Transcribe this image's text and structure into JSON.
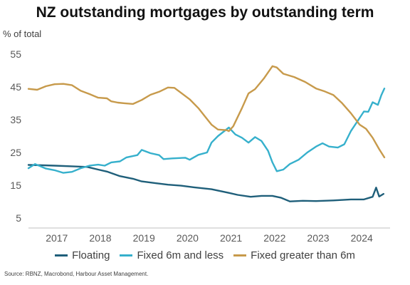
{
  "chart_data": {
    "type": "line",
    "title": "NZ outstanding mortgages by outstanding term",
    "ylabel": "% of total",
    "xlabel": "",
    "ylim": [
      2,
      58
    ],
    "xlim": [
      2016.4,
      2024.7
    ],
    "yticks": [
      5,
      15,
      25,
      35,
      45,
      55
    ],
    "xticks": [
      2017,
      2018,
      2019,
      2020,
      2021,
      2022,
      2023,
      2024
    ],
    "grid": false,
    "legend": "bottom",
    "series": [
      {
        "name": "Floating",
        "color": "#1f5f7a",
        "points": [
          [
            2016.4,
            21.2
          ],
          [
            2016.75,
            21.1
          ],
          [
            2017.0,
            21.0
          ],
          [
            2017.4,
            20.8
          ],
          [
            2017.75,
            20.6
          ],
          [
            2018.0,
            19.8
          ],
          [
            2018.2,
            19.2
          ],
          [
            2018.5,
            17.8
          ],
          [
            2018.8,
            17.0
          ],
          [
            2019.0,
            16.2
          ],
          [
            2019.3,
            15.7
          ],
          [
            2019.6,
            15.2
          ],
          [
            2019.9,
            14.9
          ],
          [
            2020.2,
            14.4
          ],
          [
            2020.6,
            13.8
          ],
          [
            2021.0,
            12.7
          ],
          [
            2021.2,
            12.1
          ],
          [
            2021.5,
            11.5
          ],
          [
            2021.75,
            11.8
          ],
          [
            2022.0,
            11.8
          ],
          [
            2022.2,
            11.2
          ],
          [
            2022.4,
            10.1
          ],
          [
            2022.7,
            10.3
          ],
          [
            2023.0,
            10.2
          ],
          [
            2023.4,
            10.4
          ],
          [
            2023.8,
            10.7
          ],
          [
            2024.1,
            10.7
          ],
          [
            2024.3,
            11.5
          ],
          [
            2024.38,
            14.3
          ],
          [
            2024.45,
            11.6
          ],
          [
            2024.55,
            12.4
          ]
        ]
      },
      {
        "name": "Fixed 6m and less",
        "color": "#36b0cc",
        "points": [
          [
            2016.4,
            20.2
          ],
          [
            2016.55,
            21.5
          ],
          [
            2016.8,
            20.1
          ],
          [
            2017.0,
            19.6
          ],
          [
            2017.2,
            18.8
          ],
          [
            2017.4,
            19.1
          ],
          [
            2017.6,
            20.2
          ],
          [
            2017.8,
            21.0
          ],
          [
            2018.0,
            21.3
          ],
          [
            2018.15,
            21.0
          ],
          [
            2018.3,
            22.0
          ],
          [
            2018.5,
            22.3
          ],
          [
            2018.65,
            23.5
          ],
          [
            2018.9,
            24.2
          ],
          [
            2019.0,
            25.8
          ],
          [
            2019.2,
            24.8
          ],
          [
            2019.4,
            24.2
          ],
          [
            2019.5,
            23.0
          ],
          [
            2019.7,
            23.2
          ],
          [
            2020.0,
            23.4
          ],
          [
            2020.1,
            22.8
          ],
          [
            2020.3,
            24.3
          ],
          [
            2020.5,
            25.0
          ],
          [
            2020.6,
            28.0
          ],
          [
            2020.75,
            30.0
          ],
          [
            2021.0,
            32.6
          ],
          [
            2021.15,
            30.5
          ],
          [
            2021.3,
            29.5
          ],
          [
            2021.45,
            28.0
          ],
          [
            2021.6,
            29.7
          ],
          [
            2021.75,
            28.5
          ],
          [
            2021.9,
            25.5
          ],
          [
            2022.0,
            22.0
          ],
          [
            2022.1,
            19.3
          ],
          [
            2022.25,
            19.8
          ],
          [
            2022.4,
            21.5
          ],
          [
            2022.6,
            22.8
          ],
          [
            2022.8,
            25.0
          ],
          [
            2023.0,
            26.8
          ],
          [
            2023.15,
            27.8
          ],
          [
            2023.3,
            26.8
          ],
          [
            2023.5,
            26.5
          ],
          [
            2023.65,
            27.5
          ],
          [
            2023.8,
            31.5
          ],
          [
            2023.95,
            34.5
          ],
          [
            2024.1,
            37.5
          ],
          [
            2024.2,
            37.4
          ],
          [
            2024.3,
            40.3
          ],
          [
            2024.42,
            39.5
          ],
          [
            2024.5,
            42.5
          ],
          [
            2024.57,
            44.5
          ]
        ]
      },
      {
        "name": "Fixed greater than 6m",
        "color": "#c79a4b",
        "points": [
          [
            2016.4,
            44.4
          ],
          [
            2016.6,
            44.1
          ],
          [
            2016.8,
            45.2
          ],
          [
            2017.0,
            45.8
          ],
          [
            2017.2,
            45.9
          ],
          [
            2017.4,
            45.5
          ],
          [
            2017.6,
            43.8
          ],
          [
            2017.8,
            42.8
          ],
          [
            2018.0,
            41.7
          ],
          [
            2018.2,
            41.5
          ],
          [
            2018.3,
            40.6
          ],
          [
            2018.45,
            40.2
          ],
          [
            2018.6,
            40.0
          ],
          [
            2018.8,
            39.8
          ],
          [
            2019.0,
            41.0
          ],
          [
            2019.2,
            42.6
          ],
          [
            2019.4,
            43.5
          ],
          [
            2019.6,
            44.8
          ],
          [
            2019.75,
            44.7
          ],
          [
            2019.9,
            43.2
          ],
          [
            2020.1,
            41.2
          ],
          [
            2020.3,
            38.5
          ],
          [
            2020.45,
            36.0
          ],
          [
            2020.6,
            33.5
          ],
          [
            2020.75,
            32.0
          ],
          [
            2020.95,
            31.8
          ],
          [
            2021.0,
            31.5
          ],
          [
            2021.1,
            33.0
          ],
          [
            2021.3,
            38.5
          ],
          [
            2021.45,
            43.0
          ],
          [
            2021.6,
            44.3
          ],
          [
            2021.8,
            47.5
          ],
          [
            2022.0,
            51.3
          ],
          [
            2022.1,
            50.9
          ],
          [
            2022.25,
            49.0
          ],
          [
            2022.5,
            48.0
          ],
          [
            2022.75,
            46.5
          ],
          [
            2023.0,
            44.5
          ],
          [
            2023.2,
            43.6
          ],
          [
            2023.4,
            42.5
          ],
          [
            2023.6,
            40.0
          ],
          [
            2023.8,
            37.0
          ],
          [
            2024.0,
            33.5
          ],
          [
            2024.15,
            32.2
          ],
          [
            2024.3,
            29.5
          ],
          [
            2024.45,
            26.0
          ],
          [
            2024.57,
            23.5
          ]
        ]
      }
    ]
  },
  "source_text": "Source: RBNZ, Macrobond, Harbour Asset Management."
}
